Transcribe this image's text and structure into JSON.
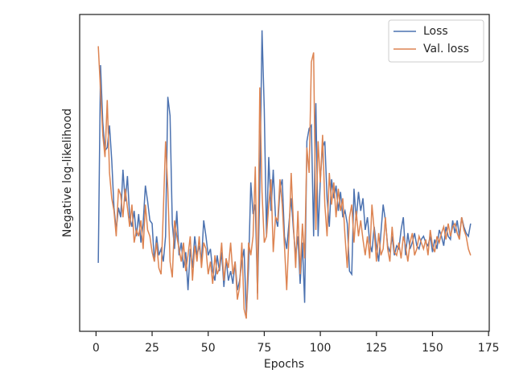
{
  "chart_data": {
    "type": "line",
    "x_label": "Epochs",
    "y_label": "Negative log-likelihood",
    "x": [
      1,
      2,
      3,
      4,
      5,
      6,
      7,
      8,
      9,
      10,
      11,
      12,
      13,
      14,
      15,
      16,
      17,
      18,
      19,
      20,
      21,
      22,
      23,
      24,
      25,
      26,
      27,
      28,
      29,
      30,
      31,
      32,
      33,
      34,
      35,
      36,
      37,
      38,
      39,
      40,
      41,
      42,
      43,
      44,
      45,
      46,
      47,
      48,
      49,
      50,
      51,
      52,
      53,
      54,
      55,
      56,
      57,
      58,
      59,
      60,
      61,
      62,
      63,
      64,
      65,
      66,
      67,
      68,
      69,
      70,
      71,
      72,
      73,
      74,
      75,
      76,
      77,
      78,
      79,
      80,
      81,
      82,
      83,
      84,
      85,
      86,
      87,
      88,
      89,
      90,
      91,
      92,
      93,
      94,
      95,
      96,
      97,
      98,
      99,
      100,
      101,
      102,
      103,
      104,
      105,
      106,
      107,
      108,
      109,
      110,
      111,
      112,
      113,
      114,
      115,
      116,
      117,
      118,
      119,
      120,
      121,
      122,
      123,
      124,
      125,
      126,
      127,
      128,
      129,
      130,
      131,
      132,
      133,
      134,
      135,
      136,
      137,
      138,
      139,
      140,
      141,
      142,
      143,
      144,
      145,
      146,
      147,
      148,
      149,
      150,
      151,
      152,
      153,
      154,
      155,
      156,
      157,
      158,
      159,
      160,
      161,
      162,
      163,
      164,
      165,
      166,
      167
    ],
    "series": [
      {
        "name": "Loss",
        "color": "#4c72b0",
        "values": [
          21.6,
          84,
          66,
          57,
          58,
          65,
          54,
          39,
          32,
          39,
          36,
          51,
          41,
          49,
          36,
          33,
          38,
          30,
          37,
          28,
          34,
          46,
          41,
          35,
          34,
          22,
          30,
          24,
          26,
          22,
          30,
          74,
          68,
          34,
          26,
          38,
          24,
          28,
          20,
          25,
          13,
          26,
          20,
          30,
          24,
          27,
          22,
          35,
          30,
          24,
          26,
          19,
          16,
          24,
          19,
          25,
          14,
          23,
          16,
          19,
          15,
          22,
          13,
          16,
          22,
          26,
          5,
          20,
          47,
          37,
          40,
          12,
          45,
          95,
          70,
          30,
          55,
          38,
          51,
          36,
          33,
          45,
          48,
          30,
          26,
          34,
          42,
          32,
          24,
          30,
          15,
          28,
          9,
          60,
          64,
          65,
          30,
          72,
          30,
          48,
          58,
          60,
          42,
          33,
          48,
          42,
          46,
          38,
          44,
          36,
          38,
          34,
          19,
          18,
          45,
          35,
          44,
          38,
          42,
          32,
          36,
          28,
          25,
          33,
          27,
          22,
          31,
          40,
          35,
          27,
          25,
          30,
          24,
          27,
          26,
          32,
          36,
          24,
          31,
          26,
          28,
          31,
          27,
          26,
          29,
          30,
          28,
          27,
          30,
          25,
          29,
          26,
          32,
          30,
          27,
          33,
          30,
          29,
          35,
          31,
          35,
          30,
          36,
          33,
          31,
          30,
          34
        ]
      },
      {
        "name": "Val. loss",
        "color": "#dd8452",
        "values": [
          90,
          76,
          62,
          55,
          73,
          50,
          42,
          38,
          30,
          45,
          43,
          36,
          45,
          39,
          33,
          40,
          28,
          32,
          30,
          35,
          26,
          40,
          32,
          30,
          25,
          22,
          28,
          20,
          18,
          38,
          60,
          45,
          22,
          17,
          35,
          30,
          26,
          22,
          28,
          19,
          24,
          30,
          16,
          27,
          22,
          30,
          20,
          28,
          26,
          18,
          22,
          15,
          24,
          18,
          20,
          28,
          16,
          23,
          20,
          28,
          18,
          22,
          10,
          14,
          28,
          7,
          4,
          28,
          24,
          30,
          52,
          10,
          77,
          44,
          28,
          30,
          40,
          48,
          25,
          36,
          35,
          48,
          40,
          27,
          13,
          30,
          50,
          34,
          20,
          38,
          18,
          34,
          23,
          58,
          50,
          85,
          88,
          32,
          60,
          47,
          62,
          40,
          30,
          50,
          40,
          47,
          36,
          45,
          38,
          42,
          30,
          20,
          36,
          40,
          28,
          38,
          30,
          35,
          29,
          24,
          30,
          23,
          40,
          32,
          22,
          31,
          24,
          26,
          36,
          26,
          22,
          33,
          25,
          24,
          28,
          23,
          30,
          27,
          22,
          28,
          31,
          24,
          26,
          30,
          28,
          26,
          29,
          24,
          32,
          27,
          25,
          30,
          28,
          31,
          33,
          29,
          34,
          30,
          33,
          34,
          31,
          29,
          36,
          32,
          30,
          26,
          24
        ]
      }
    ],
    "xlim": [
      -7.3,
      175.3
    ],
    "ylim": [
      0,
      100
    ],
    "xticks": [
      0,
      25,
      50,
      75,
      100,
      125,
      150,
      175
    ],
    "legend": "upper right"
  }
}
